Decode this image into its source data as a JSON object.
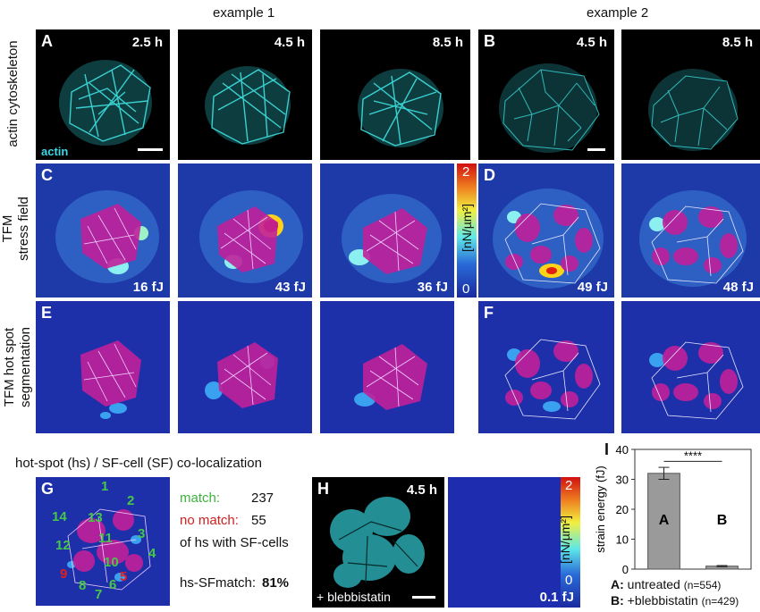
{
  "headers": {
    "example1": "example 1",
    "example2": "example 2"
  },
  "row_labels": {
    "row1": "actin cytoskeleton",
    "row2_line1": "TFM",
    "row2_line2": "stress field",
    "row3_line1": "TFM hot spot",
    "row3_line2": "segmentation"
  },
  "panel_letters": {
    "A": "A",
    "B": "B",
    "C": "C",
    "D": "D",
    "E": "E",
    "F": "F",
    "G": "G",
    "H": "H",
    "I": "I"
  },
  "times": [
    "2.5 h",
    "4.5 h",
    "8.5 h",
    "4.5 h",
    "8.5 h"
  ],
  "energies": [
    "16 fJ",
    "43 fJ",
    "36 fJ",
    "49 fJ",
    "48 fJ"
  ],
  "actin_label": "actin",
  "colorbar": {
    "max": "2",
    "min": "0",
    "unit": "[nN/µm²]"
  },
  "colocalization": {
    "title": "hot-spot (hs) / SF-cell (SF)  co-localization",
    "match_label": "match:",
    "match_value": "237",
    "nomatch_label": "no match:",
    "nomatch_value": "55",
    "of_hs": "of hs with SF-cells",
    "percent_label": "hs-SFmatch:",
    "percent_value": "81%",
    "green_numbers": [
      "1",
      "2",
      "3",
      "4",
      "6",
      "7",
      "8",
      "10",
      "11",
      "12",
      "13",
      "14"
    ],
    "red_numbers": [
      "9",
      "5"
    ]
  },
  "panel_H": {
    "time": "4.5 h",
    "treatment": "+ blebbistatin",
    "energy": "0.1 fJ"
  },
  "chart_data": {
    "type": "bar",
    "categories": [
      "A",
      "B"
    ],
    "values": [
      32,
      1
    ],
    "errors": [
      2,
      0.2
    ],
    "ylabel": "strain energy (fJ)",
    "ylim": [
      0,
      40
    ],
    "yticks": [
      "0",
      "10",
      "20",
      "30",
      "40"
    ],
    "significance": "****",
    "legend": [
      {
        "key": "A:",
        "text": "untreated",
        "n": "(n=554)"
      },
      {
        "key": "B:",
        "text": "+blebbistatin",
        "n": "(n=429)"
      }
    ],
    "colors": {
      "bar": "#9a9a9a",
      "edge": "#555555"
    }
  }
}
